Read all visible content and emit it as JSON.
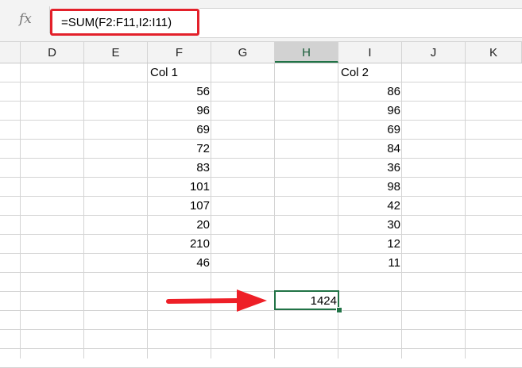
{
  "formula_bar": {
    "fx_label": "fx",
    "formula": "=SUM(F2:F11,I2:I11)"
  },
  "columns": [
    "D",
    "E",
    "F",
    "G",
    "H",
    "I",
    "J",
    "K"
  ],
  "selected_column": "H",
  "col1": {
    "header": "Col 1",
    "values": [
      "56",
      "96",
      "69",
      "72",
      "83",
      "101",
      "107",
      "20",
      "210",
      "46"
    ]
  },
  "col2": {
    "header": "Col 2",
    "values": [
      "86",
      "96",
      "69",
      "84",
      "36",
      "98",
      "42",
      "30",
      "12",
      "11"
    ]
  },
  "result": "1424",
  "colors": {
    "accent": "#217346",
    "annotation": "#e3202a"
  }
}
